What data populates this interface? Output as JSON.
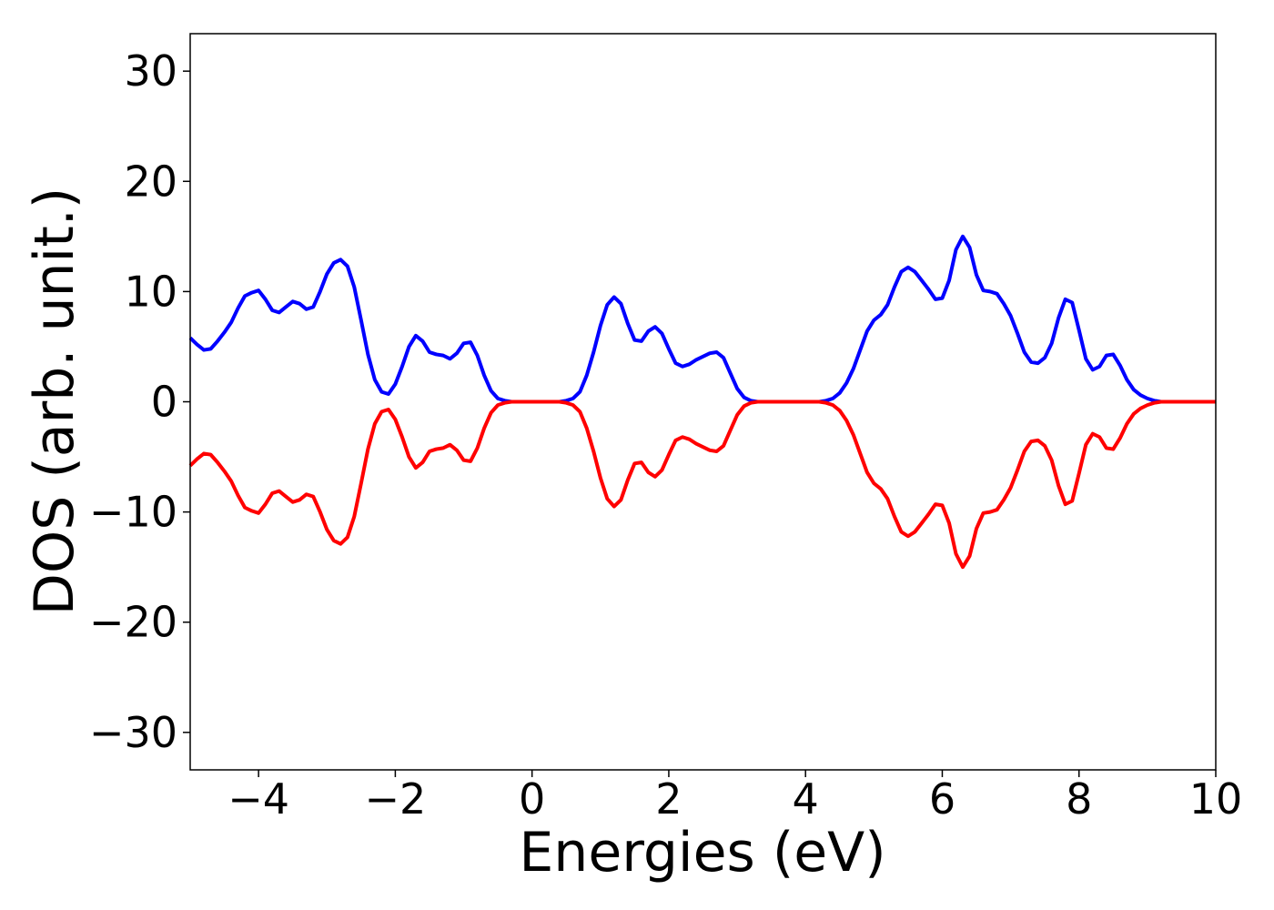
{
  "chart_data": {
    "type": "line",
    "xlabel": "Energies (eV)",
    "ylabel": "DOS (arb. unit.)",
    "x": [
      -5.0,
      -4.9,
      -4.8,
      -4.7,
      -4.6,
      -4.5,
      -4.4,
      -4.3,
      -4.2,
      -4.1,
      -4.0,
      -3.9,
      -3.8,
      -3.7,
      -3.6,
      -3.5,
      -3.4,
      -3.3,
      -3.2,
      -3.1,
      -3.0,
      -2.9,
      -2.8,
      -2.7,
      -2.6,
      -2.5,
      -2.4,
      -2.3,
      -2.2,
      -2.1,
      -2.0,
      -1.9,
      -1.8,
      -1.7,
      -1.6,
      -1.5,
      -1.4,
      -1.3,
      -1.2,
      -1.1,
      -1.0,
      -0.9,
      -0.8,
      -0.7,
      -0.6,
      -0.5,
      -0.4,
      -0.3,
      -0.2,
      -0.1,
      0.0,
      0.1,
      0.2,
      0.3,
      0.4,
      0.5,
      0.6,
      0.7,
      0.8,
      0.9,
      1.0,
      1.1,
      1.2,
      1.3,
      1.4,
      1.5,
      1.6,
      1.7,
      1.8,
      1.9,
      2.0,
      2.1,
      2.2,
      2.3,
      2.4,
      2.5,
      2.6,
      2.7,
      2.8,
      2.9,
      3.0,
      3.1,
      3.2,
      3.3,
      3.4,
      3.5,
      3.6,
      3.7,
      3.8,
      3.9,
      4.0,
      4.1,
      4.2,
      4.3,
      4.4,
      4.5,
      4.6,
      4.7,
      4.8,
      4.9,
      5.0,
      5.1,
      5.2,
      5.3,
      5.4,
      5.5,
      5.6,
      5.7,
      5.8,
      5.9,
      6.0,
      6.1,
      6.2,
      6.3,
      6.4,
      6.5,
      6.6,
      6.7,
      6.8,
      6.9,
      7.0,
      7.1,
      7.2,
      7.3,
      7.4,
      7.5,
      7.6,
      7.7,
      7.8,
      7.9,
      8.0,
      8.1,
      8.2,
      8.3,
      8.4,
      8.5,
      8.6,
      8.7,
      8.8,
      8.9,
      9.0,
      9.1,
      9.2,
      9.3,
      9.4,
      9.5,
      9.6,
      9.7,
      9.8,
      9.9,
      10.0
    ],
    "series": [
      {
        "color": "#0000ff",
        "values": [
          5.8,
          5.2,
          4.7,
          4.8,
          5.5,
          6.3,
          7.2,
          8.5,
          9.6,
          9.9,
          10.1,
          9.3,
          8.3,
          8.1,
          8.6,
          9.1,
          8.9,
          8.4,
          8.6,
          10.0,
          11.6,
          12.6,
          12.9,
          12.3,
          10.4,
          7.4,
          4.3,
          2.0,
          0.9,
          0.7,
          1.6,
          3.2,
          5.0,
          6.0,
          5.5,
          4.5,
          4.3,
          4.2,
          3.9,
          4.4,
          5.3,
          5.4,
          4.2,
          2.4,
          1.0,
          0.3,
          0.1,
          0,
          0,
          0,
          0,
          0,
          0,
          0,
          0,
          0.1,
          0.3,
          0.9,
          2.4,
          4.5,
          6.9,
          8.8,
          9.5,
          8.9,
          7.1,
          5.6,
          5.5,
          6.4,
          6.8,
          6.2,
          4.8,
          3.5,
          3.2,
          3.4,
          3.8,
          4.1,
          4.4,
          4.5,
          4.0,
          2.6,
          1.2,
          0.4,
          0.1,
          0,
          0,
          0,
          0,
          0,
          0,
          0,
          0,
          0,
          0,
          0.1,
          0.3,
          0.8,
          1.7,
          3.0,
          4.7,
          6.4,
          7.4,
          7.9,
          8.8,
          10.4,
          11.8,
          12.2,
          11.8,
          11.0,
          10.2,
          9.3,
          9.4,
          11.0,
          13.8,
          15.0,
          14.0,
          11.5,
          10.1,
          10.0,
          9.8,
          8.9,
          7.8,
          6.2,
          4.5,
          3.6,
          3.5,
          4.0,
          5.3,
          7.6,
          9.3,
          9.0,
          6.5,
          3.9,
          2.9,
          3.2,
          4.2,
          4.3,
          3.3,
          2.0,
          1.1,
          0.6,
          0.3,
          0.1,
          0,
          0,
          0,
          0,
          0,
          0,
          0,
          0,
          0
        ]
      },
      {
        "color": "#ff0000",
        "values": [
          -5.8,
          -5.2,
          -4.7,
          -4.8,
          -5.5,
          -6.3,
          -7.2,
          -8.5,
          -9.6,
          -9.9,
          -10.1,
          -9.3,
          -8.3,
          -8.1,
          -8.6,
          -9.1,
          -8.9,
          -8.4,
          -8.6,
          -10.0,
          -11.6,
          -12.6,
          -12.9,
          -12.3,
          -10.4,
          -7.4,
          -4.3,
          -2.0,
          -0.9,
          -0.7,
          -1.6,
          -3.2,
          -5.0,
          -6.0,
          -5.5,
          -4.5,
          -4.3,
          -4.2,
          -3.9,
          -4.4,
          -5.3,
          -5.4,
          -4.2,
          -2.4,
          -1.0,
          -0.3,
          -0.1,
          0,
          0,
          0,
          0,
          0,
          0,
          0,
          0,
          -0.1,
          -0.3,
          -0.9,
          -2.4,
          -4.5,
          -6.9,
          -8.8,
          -9.5,
          -8.9,
          -7.1,
          -5.6,
          -5.5,
          -6.4,
          -6.8,
          -6.2,
          -4.8,
          -3.5,
          -3.2,
          -3.4,
          -3.8,
          -4.1,
          -4.4,
          -4.5,
          -4.0,
          -2.6,
          -1.2,
          -0.4,
          -0.1,
          0,
          0,
          0,
          0,
          0,
          0,
          0,
          0,
          0,
          0,
          -0.1,
          -0.3,
          -0.8,
          -1.7,
          -3.0,
          -4.7,
          -6.4,
          -7.4,
          -7.9,
          -8.8,
          -10.4,
          -11.8,
          -12.2,
          -11.8,
          -11.0,
          -10.2,
          -9.3,
          -9.4,
          -11.0,
          -13.8,
          -15.0,
          -14.0,
          -11.5,
          -10.1,
          -10.0,
          -9.8,
          -8.9,
          -7.8,
          -6.2,
          -4.5,
          -3.6,
          -3.5,
          -4.0,
          -5.3,
          -7.6,
          -9.3,
          -9.0,
          -6.5,
          -3.9,
          -2.9,
          -3.2,
          -4.2,
          -4.3,
          -3.3,
          -2.0,
          -1.1,
          -0.6,
          -0.3,
          -0.1,
          0,
          0,
          0,
          0,
          0,
          0,
          0,
          0,
          0
        ]
      }
    ],
    "xlim": [
      -5,
      10
    ],
    "xticks": [
      {
        "value": -4,
        "label": "−4"
      },
      {
        "value": -2,
        "label": "−2"
      },
      0,
      2,
      4,
      6,
      8,
      10
    ],
    "ylim": [
      -33.4,
      33.4
    ],
    "yticks": [
      {
        "value": -30,
        "label": "−30"
      },
      {
        "value": -20,
        "label": "−20"
      },
      {
        "value": -10,
        "label": "−10"
      },
      0,
      10,
      20,
      30
    ],
    "grid": false
  }
}
